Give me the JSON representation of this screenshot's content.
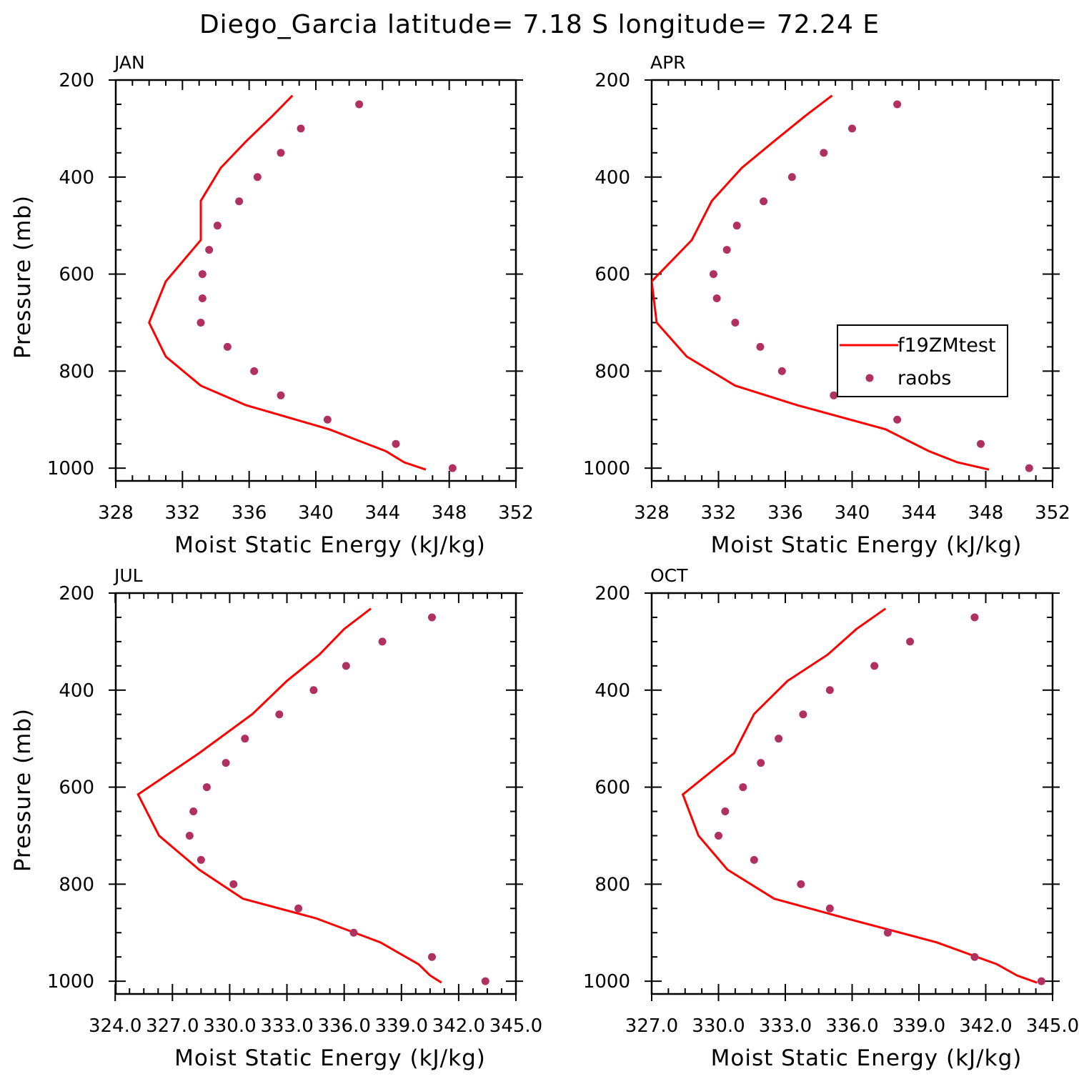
{
  "title": "Diego_Garcia  latitude= 7.18 S longitude= 72.24 E",
  "colors": {
    "model": "#ff0000",
    "obs": "#b03060"
  },
  "legend": {
    "model": "f19ZMtest",
    "obs": "raobs"
  },
  "chart_data": [
    {
      "type": "line",
      "title": "JAN",
      "xlabel": "Moist Static Energy (kJ/kg)",
      "ylabel": "Pressure (mb)",
      "xlim": [
        328,
        352
      ],
      "ylim": [
        1000,
        200
      ],
      "xticks": [
        "328",
        "332",
        "336",
        "340",
        "344",
        "348",
        "352"
      ],
      "yticks": [
        "200",
        "400",
        "600",
        "800",
        "1000"
      ],
      "series": [
        {
          "name": "f19ZMtest",
          "x": [
            338.6,
            337.4,
            335.8,
            334.3,
            333.1,
            333.1,
            331.0,
            330.0,
            331.0,
            333.1,
            335.8,
            340.8,
            344.2,
            345.3,
            346.6
          ],
          "y": [
            232,
            274,
            327,
            381,
            449,
            530,
            615,
            700,
            770,
            830,
            870,
            920,
            965,
            988,
            1003
          ]
        },
        {
          "name": "raobs",
          "x": [
            342.6,
            339.1,
            337.9,
            336.5,
            335.4,
            334.1,
            333.6,
            333.2,
            333.2,
            333.1,
            334.7,
            336.3,
            337.9,
            340.7,
            344.8,
            348.2
          ],
          "y": [
            250,
            300,
            350,
            400,
            450,
            500,
            550,
            600,
            650,
            700,
            750,
            800,
            850,
            900,
            950,
            1000
          ]
        }
      ]
    },
    {
      "type": "line",
      "title": "APR",
      "xlabel": "Moist Static Energy (kJ/kg)",
      "ylabel": "",
      "xlim": [
        328,
        352
      ],
      "ylim": [
        1000,
        200
      ],
      "xticks": [
        "328",
        "332",
        "336",
        "340",
        "344",
        "348",
        "352"
      ],
      "yticks": [
        "200",
        "400",
        "600",
        "800",
        "1000"
      ],
      "show_legend": true,
      "series": [
        {
          "name": "f19ZMtest",
          "x": [
            338.8,
            337.2,
            335.3,
            333.4,
            331.6,
            330.4,
            328.0,
            328.3,
            330.1,
            333.0,
            336.7,
            342.0,
            344.6,
            346.3,
            348.2
          ],
          "y": [
            232,
            274,
            327,
            381,
            449,
            530,
            615,
            700,
            770,
            830,
            870,
            920,
            965,
            988,
            1003
          ]
        },
        {
          "name": "raobs",
          "x": [
            342.7,
            340.0,
            338.3,
            336.4,
            334.7,
            333.1,
            332.5,
            331.7,
            331.9,
            333.0,
            334.5,
            335.8,
            338.9,
            342.7,
            347.7,
            350.6
          ],
          "y": [
            250,
            300,
            350,
            400,
            450,
            500,
            550,
            600,
            650,
            700,
            750,
            800,
            850,
            900,
            950,
            1000
          ]
        }
      ]
    },
    {
      "type": "line",
      "title": "JUL",
      "xlabel": "Moist Static Energy (kJ/kg)",
      "ylabel": "Pressure (mb)",
      "xlim": [
        324.03,
        345.0
      ],
      "ylim": [
        1000,
        200
      ],
      "xticks": [
        "324.0",
        "327.0",
        "330.0",
        "333.0",
        "336.0",
        "339.0",
        "342.0",
        "345.0"
      ],
      "xticklabels": [
        "324.0",
        "327.0",
        "330.0",
        "333.0",
        "336.0",
        "339.0",
        "342.0",
        "345.0"
      ],
      "yticks": [
        "200",
        "400",
        "600",
        "800",
        "1000"
      ],
      "series": [
        {
          "name": "f19ZMtest",
          "x": [
            337.4,
            336.0,
            334.7,
            333.0,
            331.2,
            328.4,
            325.2,
            326.3,
            328.4,
            330.7,
            334.5,
            337.9,
            339.9,
            340.5,
            341.1
          ],
          "y": [
            232,
            274,
            327,
            381,
            449,
            530,
            615,
            700,
            770,
            830,
            870,
            920,
            965,
            988,
            1003
          ]
        },
        {
          "name": "raobs",
          "x": [
            340.6,
            338.0,
            336.1,
            334.4,
            332.6,
            330.8,
            329.8,
            328.8,
            328.1,
            327.9,
            328.5,
            330.2,
            333.6,
            336.5,
            340.6,
            343.4
          ],
          "y": [
            250,
            300,
            350,
            400,
            450,
            500,
            550,
            600,
            650,
            700,
            750,
            800,
            850,
            900,
            950,
            1000
          ]
        }
      ]
    },
    {
      "type": "line",
      "title": "OCT",
      "xlabel": "Moist Static Energy (kJ/kg)",
      "ylabel": "",
      "xlim": [
        327.0,
        345.0
      ],
      "ylim": [
        1000,
        200
      ],
      "xticks": [
        "327.0",
        "330.0",
        "333.0",
        "336.0",
        "339.0",
        "342.0",
        "345.0"
      ],
      "yticks": [
        "200",
        "400",
        "600",
        "800",
        "1000"
      ],
      "series": [
        {
          "name": "f19ZMtest",
          "x": [
            337.5,
            336.2,
            334.9,
            333.1,
            331.6,
            330.7,
            328.4,
            329.1,
            330.4,
            332.5,
            335.7,
            339.8,
            342.5,
            343.4,
            344.3
          ],
          "y": [
            232,
            274,
            327,
            381,
            449,
            530,
            615,
            700,
            770,
            830,
            870,
            920,
            965,
            988,
            1003
          ]
        },
        {
          "name": "raobs",
          "x": [
            341.5,
            338.6,
            337.0,
            335.0,
            333.8,
            332.7,
            331.9,
            331.1,
            330.3,
            330.0,
            331.6,
            333.7,
            335.0,
            337.6,
            341.5,
            344.5
          ],
          "y": [
            250,
            300,
            350,
            400,
            450,
            500,
            550,
            600,
            650,
            700,
            750,
            800,
            850,
            900,
            950,
            1000
          ]
        }
      ]
    }
  ]
}
